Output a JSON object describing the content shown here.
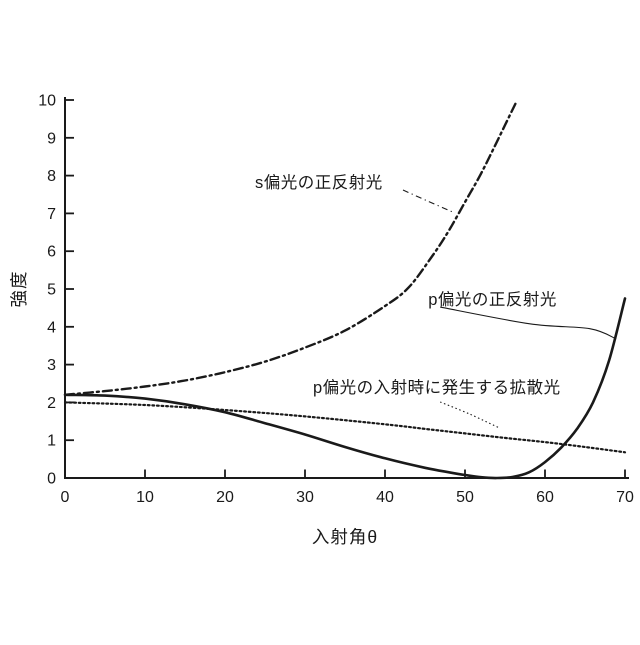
{
  "page": {
    "background": "#ffffff",
    "ink": "#1a1a1a"
  },
  "chart_data": {
    "type": "line",
    "title": "",
    "xlabel": "入射角θ",
    "ylabel": "強度",
    "xlim": [
      0,
      70
    ],
    "ylim": [
      0,
      10
    ],
    "xticks": [
      0,
      10,
      20,
      30,
      40,
      50,
      60,
      70
    ],
    "yticks": [
      0,
      1,
      2,
      3,
      4,
      5,
      6,
      7,
      8,
      9,
      10
    ],
    "grid": false,
    "legend_position": "none (curves identified by in-plot annotations with leader lines)",
    "series": [
      {
        "id": "s-specular",
        "label": "s偏光の正反射光",
        "line_style": "dash-dot",
        "color": "#1a1a1a",
        "x": [
          0,
          5,
          10,
          15,
          20,
          25,
          30,
          35,
          40,
          43,
          46,
          48,
          50,
          52,
          54,
          56.3
        ],
        "y": [
          2.2,
          2.3,
          2.42,
          2.58,
          2.8,
          3.08,
          3.45,
          3.9,
          4.55,
          5.05,
          5.9,
          6.55,
          7.3,
          8.05,
          8.9,
          9.9
        ]
      },
      {
        "id": "p-specular",
        "label": "p偏光の正反射光",
        "line_style": "solid",
        "color": "#1a1a1a",
        "x": [
          0,
          5,
          10,
          15,
          20,
          25,
          30,
          35,
          40,
          45,
          48,
          50,
          52,
          54,
          56,
          58,
          60,
          62,
          64,
          66,
          68,
          70
        ],
        "y": [
          2.2,
          2.18,
          2.1,
          1.95,
          1.74,
          1.45,
          1.15,
          0.82,
          0.52,
          0.27,
          0.15,
          0.08,
          0.02,
          0.0,
          0.03,
          0.15,
          0.42,
          0.8,
          1.3,
          2.0,
          3.1,
          4.75
        ]
      },
      {
        "id": "p-diffuse",
        "label": "p偏光の入射時に発生する拡散光",
        "line_style": "dotted",
        "color": "#1a1a1a",
        "x": [
          0,
          10,
          20,
          30,
          40,
          45,
          50,
          55,
          60,
          65,
          70
        ],
        "y": [
          2.0,
          1.93,
          1.8,
          1.63,
          1.42,
          1.3,
          1.18,
          1.06,
          0.95,
          0.82,
          0.68
        ]
      }
    ],
    "annotations": [
      {
        "id": "s-specular-label",
        "text": "s偏光の正反射光",
        "text_x": 23.75,
        "text_y": 7.67,
        "leader_style": "dash-dot",
        "leader": [
          [
            42.25,
            7.62
          ],
          [
            45.4,
            7.32
          ],
          [
            48.75,
            7.01
          ]
        ]
      },
      {
        "id": "p-specular-label",
        "text": "p偏光の正反射光",
        "text_x": 45.4,
        "text_y": 4.58,
        "leader_style": "solid",
        "leader": [
          [
            46.9,
            4.52
          ],
          [
            58.1,
            4.08
          ],
          [
            65.6,
            3.95
          ],
          [
            68.9,
            3.68
          ]
        ]
      },
      {
        "id": "p-diffuse-label",
        "text": "p偏光の入射時に発生する拡散光",
        "text_x": 31.0,
        "text_y": 2.25,
        "leader_style": "dotted",
        "leader": [
          [
            46.9,
            2.01
          ],
          [
            50.6,
            1.69
          ],
          [
            54.25,
            1.33
          ]
        ]
      }
    ]
  }
}
